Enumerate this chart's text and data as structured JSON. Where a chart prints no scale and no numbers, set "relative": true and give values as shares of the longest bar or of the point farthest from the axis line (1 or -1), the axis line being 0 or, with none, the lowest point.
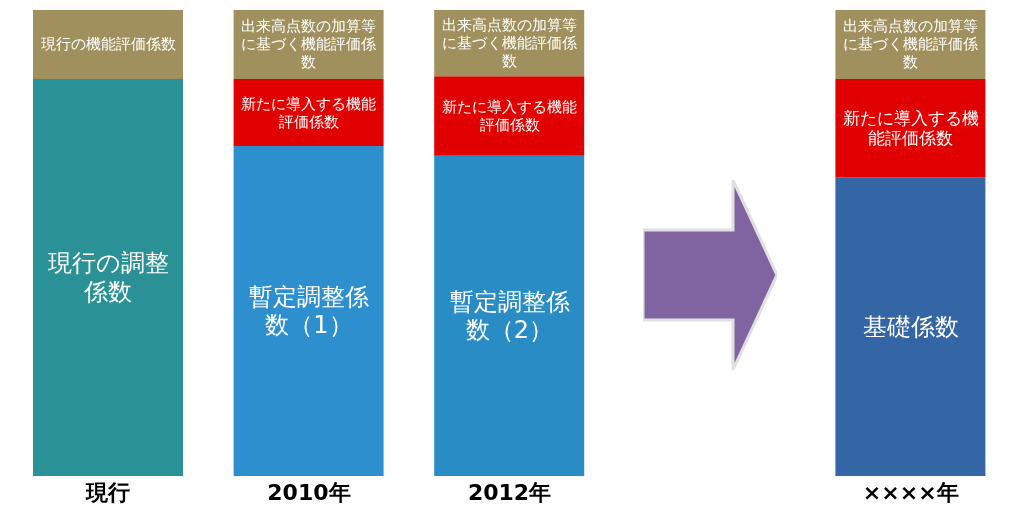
{
  "chart_data": {
    "type": "bar",
    "stacked": true,
    "relative": true,
    "categories": [
      "現行",
      "2010年",
      "2012年",
      null,
      "××××年"
    ],
    "series": [
      {
        "colors": [
          "#2a9196",
          "#2e8fcf",
          "#2a8cc4",
          null,
          "#3465a4"
        ],
        "values": [
          0.852,
          0.708,
          0.687,
          null,
          0.641
        ]
      },
      {
        "color": "#e00000",
        "values": [
          null,
          0.144,
          0.171,
          null,
          0.211
        ]
      },
      {
        "color": "#a0905e",
        "values": [
          0.148,
          0.148,
          0.142,
          null,
          0.148
        ]
      }
    ],
    "annotations": [
      "現行の調整係数",
      "現行の機能評価係数",
      "暫定調整係数（1）",
      "新たに導入する機能評価係数",
      "出来高点数の加算等に基づく機能評価係数",
      "暫定調整係数（2）",
      "新たに導入する機能評価係数",
      "出来高点数の加算等に基づく機能評価係数",
      "基礎係数",
      "新たに導入する機能評価係数",
      "出来高点数の加算等に基づく機能評価係数"
    ]
  }
}
